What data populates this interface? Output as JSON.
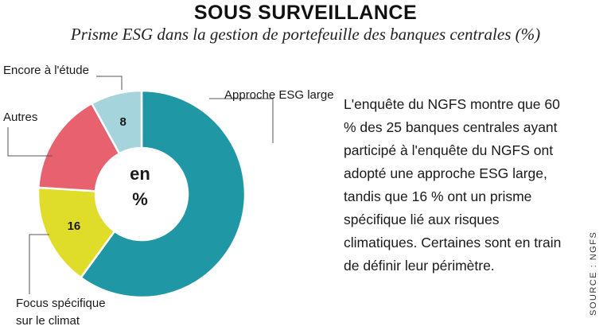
{
  "chart_data": {
    "type": "pie",
    "title": "SOUS SURVEILLANCE",
    "subtitle": "Prisme ESG dans la gestion de portefeuille des banques centrales (%)",
    "center_label": [
      "en",
      "%"
    ],
    "slices": [
      {
        "label": "Approche ESG large",
        "value": 60,
        "value_label": "",
        "color": "#1f97a5"
      },
      {
        "label": "Focus spécifique sur le climat",
        "label_lines": [
          "Focus spécifique",
          "sur le climat"
        ],
        "value": 16,
        "value_label": "16",
        "color": "#e0dc2a"
      },
      {
        "label": "Autres",
        "value": 16,
        "value_label": "",
        "color": "#e8616f"
      },
      {
        "label": "Encore à l'étude",
        "value": 8,
        "value_label": "8",
        "color": "#a6d4dc"
      }
    ]
  },
  "description": "L'enquête du NGFS montre que 60 % des 25 banques centrales ayant participé à l'enquête du NGFS ont adopté une approche ESG large, tandis que 16 % ont un prisme spécifique lié aux risques climatiques. Certaines sont en train de définir leur périmètre.",
  "source": "SOURCE : NGFS"
}
